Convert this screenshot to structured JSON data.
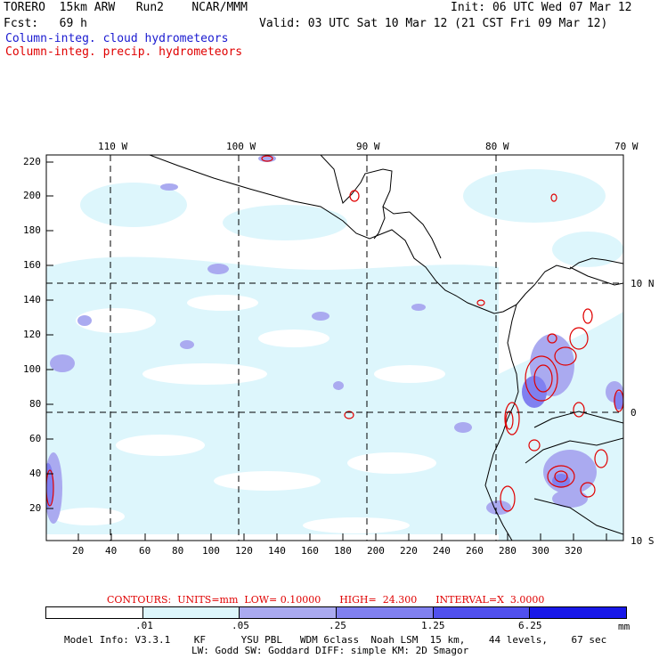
{
  "header": {
    "left_line1": "TORERO  15km ARW   Run2    NCAR/MMM",
    "left_line2": "Fcst:   69 h",
    "right_line1": "Init: 06 UTC Wed 07 Mar 12",
    "right_line2": "Valid: 03 UTC Sat 10 Mar 12 (21 CST Fri 09 Mar 12)",
    "cloud_label": "Column-integ. cloud hydrometeors",
    "precip_label": "Column-integ. precip. hydrometeors"
  },
  "colors": {
    "cloud_text": "#1a1ad0",
    "precip_text": "#e00000",
    "shade_1": "#ddf6fc",
    "shade_2": "#aaaaf0",
    "shade_3": "#8080f0",
    "shade_4": "#5050ee",
    "shade_5": "#1818e8"
  },
  "map": {
    "top_lon_labels": [
      "110 W",
      "100 W",
      "90 W",
      "80 W",
      "70 W"
    ],
    "right_lat_labels": [
      "10 N",
      "0",
      "10 S"
    ],
    "left_ticks": [
      "220",
      "200",
      "180",
      "160",
      "140",
      "120",
      "100",
      "80",
      "60",
      "40",
      "20"
    ],
    "bottom_ticks": [
      "20",
      "40",
      "60",
      "80",
      "100",
      "120",
      "140",
      "160",
      "180",
      "200",
      "220",
      "240",
      "260",
      "280",
      "300",
      "320"
    ]
  },
  "contour_info": "CONTOURS:  UNITS=mm  LOW= 0.10000      HIGH=  24.300      INTERVAL=X  3.0000",
  "colorbar": {
    "labels": [
      ".01",
      ".05",
      ".25",
      "1.25",
      "6.25"
    ],
    "units": "mm"
  },
  "footer": {
    "line1": "Model Info: V3.3.1    KF      YSU PBL   WDM 6class  Noah LSM  15 km,    44 levels,    67 sec",
    "line2": "LW: Godd SW: Goddard DIFF: simple KM: 2D Smagor"
  }
}
